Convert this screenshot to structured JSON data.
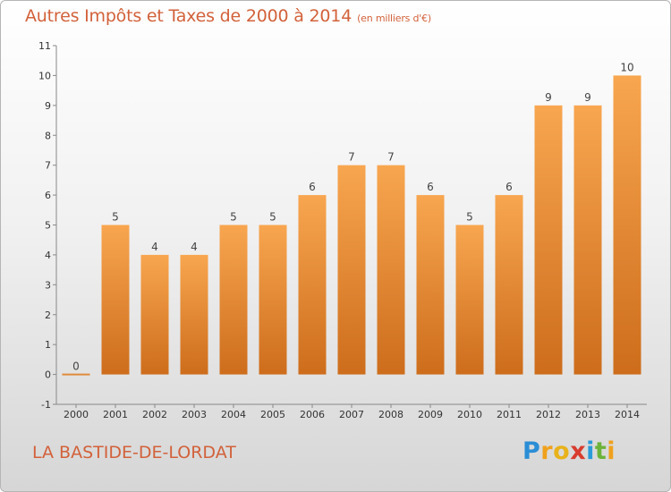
{
  "header": {
    "title": "Autres Impôts et Taxes de 2000 à 2014",
    "unit": "(en milliers d'€)"
  },
  "footer": {
    "commune": "LA BASTIDE-DE-LORDAT",
    "brand_letters": [
      "P",
      "r",
      "o",
      "x",
      "i",
      "t",
      "i"
    ],
    "brand_colors": [
      "#2a8ed6",
      "#f0a11c",
      "#e8b21b",
      "#d83c2e",
      "#2a9bd8",
      "#6cb33a",
      "#f0a11c"
    ]
  },
  "chart_data": {
    "type": "bar",
    "title": "Autres Impôts et Taxes de 2000 à 2014",
    "subtitle": "(en milliers d'€)",
    "categories": [
      "2000",
      "2001",
      "2002",
      "2003",
      "2004",
      "2005",
      "2006",
      "2007",
      "2008",
      "2009",
      "2010",
      "2011",
      "2012",
      "2013",
      "2014"
    ],
    "values": [
      0,
      5,
      4,
      4,
      5,
      5,
      6,
      7,
      7,
      6,
      5,
      6,
      9,
      9,
      10
    ],
    "data_labels": [
      "0",
      "5",
      "4",
      "4",
      "5",
      "5",
      "6",
      "7",
      "7",
      "6",
      "5",
      "6",
      "9",
      "9",
      "10"
    ],
    "ylim": [
      -1,
      11
    ],
    "ytick_labels": [
      "-1",
      "0",
      "1",
      "2",
      "3",
      "4",
      "5",
      "6",
      "7",
      "8",
      "9",
      "10",
      "11"
    ],
    "xlabel": "",
    "ylabel": "",
    "grid": false,
    "bar_color_light": "#f8a650",
    "bar_color_dark": "#cd6d1c"
  }
}
